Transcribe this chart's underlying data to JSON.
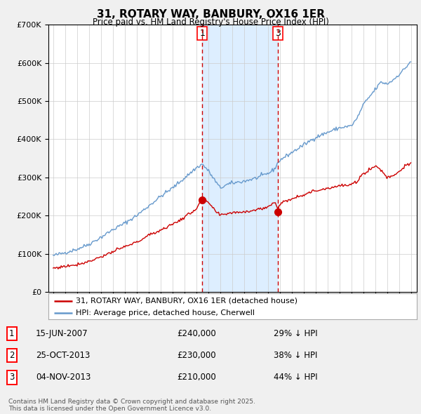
{
  "title": "31, ROTARY WAY, BANBURY, OX16 1ER",
  "subtitle": "Price paid vs. HM Land Registry's House Price Index (HPI)",
  "legend_label_red": "31, ROTARY WAY, BANBURY, OX16 1ER (detached house)",
  "legend_label_blue": "HPI: Average price, detached house, Cherwell",
  "footer": "Contains HM Land Registry data © Crown copyright and database right 2025.\nThis data is licensed under the Open Government Licence v3.0.",
  "transactions": [
    {
      "num": "1",
      "date": "15-JUN-2007",
      "price": "£240,000",
      "hpi": "29% ↓ HPI"
    },
    {
      "num": "2",
      "date": "25-OCT-2013",
      "price": "£230,000",
      "hpi": "38% ↓ HPI"
    },
    {
      "num": "3",
      "date": "04-NOV-2013",
      "price": "£210,000",
      "hpi": "44% ↓ HPI"
    }
  ],
  "vline1_x": 2007.5,
  "vline1_label": "1",
  "vline2_x": 2013.85,
  "vline2_label": "3",
  "sale1_x": 2007.5,
  "sale1_y": 240000,
  "sale2_x": 2013.75,
  "sale2_y": 230000,
  "sale3_x": 2013.85,
  "sale3_y": 210000,
  "ylim": [
    0,
    700000
  ],
  "xlim_start": 1994.6,
  "xlim_end": 2025.5,
  "bg_color": "#f0f0f0",
  "plot_bg_color": "#ffffff",
  "shade_color": "#ddeeff",
  "red_color": "#cc0000",
  "blue_color": "#6699cc"
}
